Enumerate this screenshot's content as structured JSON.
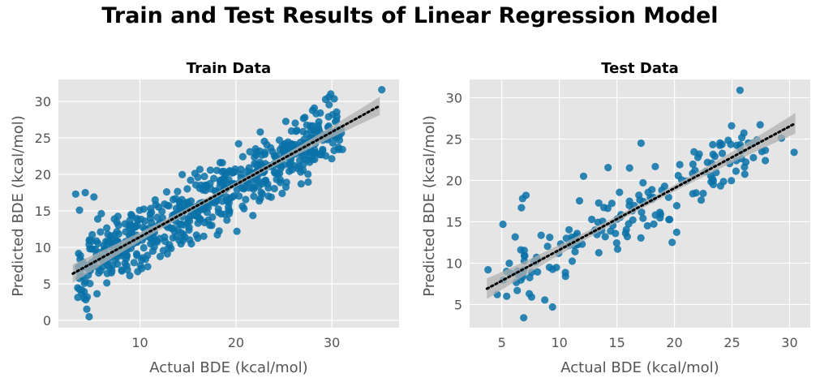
{
  "title": "Train and Test Results of Linear Regression Model",
  "colors": {
    "point": "#0b72a8",
    "panel_bg": "#e5e5e5",
    "grid": "#ffffff",
    "fit": "#000000",
    "band": "#b0b0b0",
    "text": "#555555"
  },
  "chart_data": [
    {
      "type": "scatter",
      "title": "Train Data",
      "xlabel": "Actual BDE (kcal/mol)",
      "ylabel": "Predicted BDE (kcal/mol)",
      "xlim": [
        1.5,
        37
      ],
      "ylim": [
        -1,
        33
      ],
      "xticks": [
        10,
        20,
        30
      ],
      "yticks": [
        0,
        5,
        10,
        15,
        20,
        25,
        30
      ],
      "grid": true,
      "regression_line": {
        "x": [
          3,
          35
        ],
        "y": [
          6.4,
          29.4
        ]
      },
      "confidence_band": true,
      "highlighted_points": [
        {
          "x": 35.2,
          "y": 31.6
        },
        {
          "x": 29.7,
          "y": 30.6
        },
        {
          "x": 3.3,
          "y": 17.3
        },
        {
          "x": 4.3,
          "y": 17.5
        },
        {
          "x": 3.7,
          "y": 15.1
        },
        {
          "x": 5.2,
          "y": 16.9
        },
        {
          "x": 4.5,
          "y": 3.2
        },
        {
          "x": 4.2,
          "y": 3.9
        },
        {
          "x": 4.7,
          "y": 0.5
        },
        {
          "x": 31.1,
          "y": 23.4
        },
        {
          "x": 26.8,
          "y": 18.7
        },
        {
          "x": 20.1,
          "y": 12.2
        }
      ],
      "point_cloud": {
        "n": 620,
        "x_range": [
          3.5,
          31
        ],
        "relation": "y ≈ 6.4 + 0.72·(x − 3)",
        "spread_sd": 2.1
      }
    },
    {
      "type": "scatter",
      "title": "Test Data",
      "xlabel": "Actual BDE (kcal/mol)",
      "ylabel": "Predicted BDE (kcal/mol)",
      "xlim": [
        2.2,
        31.8
      ],
      "ylim": [
        2.2,
        32.2
      ],
      "xticks": [
        5,
        10,
        15,
        20,
        25,
        30
      ],
      "yticks": [
        5,
        10,
        15,
        20,
        25,
        30
      ],
      "grid": true,
      "regression_line": {
        "x": [
          3.7,
          30.5
        ],
        "y": [
          6.9,
          26.9
        ]
      },
      "confidence_band": true,
      "highlighted_points": [
        {
          "x": 25.7,
          "y": 30.9
        },
        {
          "x": 30.4,
          "y": 23.4
        },
        {
          "x": 29.3,
          "y": 25.1
        },
        {
          "x": 3.8,
          "y": 9.2
        },
        {
          "x": 4.6,
          "y": 6.2
        },
        {
          "x": 5.1,
          "y": 14.7
        },
        {
          "x": 6.8,
          "y": 17.8
        },
        {
          "x": 7.1,
          "y": 18.2
        },
        {
          "x": 6.7,
          "y": 16.7
        },
        {
          "x": 6.9,
          "y": 3.4
        },
        {
          "x": 9.4,
          "y": 4.7
        },
        {
          "x": 12.1,
          "y": 20.5
        },
        {
          "x": 17.1,
          "y": 24.5
        },
        {
          "x": 19.8,
          "y": 12.5
        },
        {
          "x": 16.1,
          "y": 21.5
        }
      ],
      "point_cloud": {
        "n": 170,
        "x_range": [
          5,
          28
        ],
        "relation": "y ≈ 6.9 + 0.746·(x − 3.7)",
        "spread_sd": 2.0
      }
    }
  ]
}
